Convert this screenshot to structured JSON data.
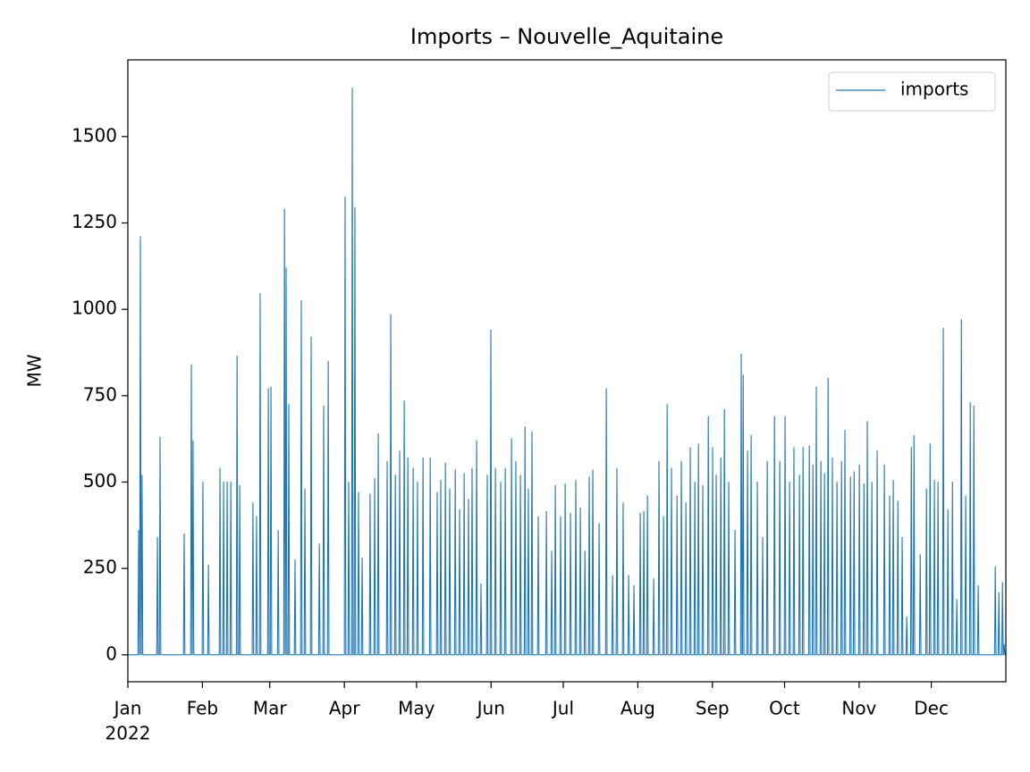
{
  "chart_data": {
    "type": "line",
    "title": "Imports – Nouvelle_Aquitaine",
    "y_label": "MW",
    "x_offset_label": "2022",
    "xlim": [
      0,
      365
    ],
    "ylim": [
      -78,
      1722
    ],
    "xticks": [
      {
        "value": 0,
        "label": "Jan"
      },
      {
        "value": 31,
        "label": "Feb"
      },
      {
        "value": 59,
        "label": "Mar"
      },
      {
        "value": 90,
        "label": "Apr"
      },
      {
        "value": 120,
        "label": "May"
      },
      {
        "value": 151,
        "label": "Jun"
      },
      {
        "value": 181,
        "label": "Jul"
      },
      {
        "value": 212,
        "label": "Aug"
      },
      {
        "value": 243,
        "label": "Sep"
      },
      {
        "value": 273,
        "label": "Oct"
      },
      {
        "value": 304,
        "label": "Nov"
      },
      {
        "value": 334,
        "label": "Dec"
      }
    ],
    "yticks": [
      0,
      250,
      500,
      750,
      1000,
      1250,
      1500
    ],
    "legend": "upper right",
    "x": [
      0,
      4.2,
      4.5,
      4.8,
      4.9,
      5.2,
      5.5,
      5.6,
      5.9,
      6.2,
      12.0,
      12.3,
      12.6,
      13.1,
      13.4,
      13.7,
      23.1,
      23.4,
      23.7,
      26.1,
      26.4,
      26.7,
      26.8,
      27.1,
      27.4,
      30.9,
      31.2,
      31.5,
      33.2,
      33.5,
      33.8,
      38.0,
      38.3,
      38.6,
      39.5,
      39.8,
      40.1,
      41.0,
      41.3,
      41.6,
      42.5,
      42.8,
      43.1,
      45.1,
      45.4,
      45.7,
      46.2,
      46.5,
      46.8,
      51.7,
      52.0,
      52.3,
      53.2,
      53.5,
      53.8,
      54.7,
      55.0,
      55.3,
      58.1,
      58.4,
      58.7,
      59.2,
      59.5,
      59.8,
      62.2,
      62.5,
      62.8,
      64.8,
      65.1,
      65.4,
      65.5,
      65.8,
      66.1,
      66.6,
      66.9,
      67.2,
      69.2,
      69.5,
      69.8,
      71.8,
      72.1,
      72.4,
      73.3,
      73.6,
      73.9,
      75.9,
      76.2,
      76.5,
      79.3,
      79.6,
      79.9,
      81.1,
      81.4,
      81.7,
      83.0,
      83.3,
      83.6,
      90.0,
      90.3,
      90.6,
      91.5,
      91.8,
      92.1,
      93.0,
      93.3,
      93.6,
      94.1,
      94.4,
      94.7,
      95.6,
      95.9,
      96.2,
      97.1,
      97.4,
      97.7,
      100.4,
      100.7,
      101.0,
      102.3,
      102.6,
      102.9,
      103.8,
      104.1,
      104.4,
      107.5,
      107.8,
      108.1,
      109.0,
      109.3,
      109.6,
      110.9,
      111.2,
      111.5,
      112.7,
      113.0,
      113.3,
      114.6,
      114.9,
      115.2,
      116.1,
      116.4,
      116.7,
      118.3,
      118.6,
      118.9,
      120.1,
      120.4,
      120.7,
      122.4,
      122.7,
      123.0,
      125.4,
      125.7,
      126.0,
      128.3,
      128.6,
      128.9,
      129.8,
      130.1,
      130.4,
      131.7,
      132.0,
      132.3,
      133.5,
      133.8,
      134.1,
      135.8,
      136.1,
      136.4,
      137.6,
      137.9,
      138.2,
      139.5,
      139.8,
      140.1,
      141.3,
      141.6,
      141.9,
      142.8,
      143.1,
      143.4,
      144.7,
      145.0,
      145.3,
      146.5,
      146.8,
      147.1,
      149.1,
      149.4,
      149.7,
      150.6,
      150.9,
      151.2,
      152.5,
      152.8,
      153.1,
      154.7,
      155.0,
      155.3,
      156.6,
      156.9,
      157.2,
      159.2,
      159.5,
      159.8,
      161.0,
      161.3,
      161.6,
      162.9,
      163.2,
      163.5,
      164.8,
      165.1,
      165.4,
      166.2,
      166.5,
      166.8,
      167.7,
      168.0,
      168.3,
      170.3,
      170.6,
      170.9,
      173.7,
      174.0,
      174.3,
      175.9,
      176.2,
      176.5,
      177.4,
      177.7,
      178.0,
      179.6,
      179.9,
      180.2,
      181.5,
      181.8,
      182.1,
      183.7,
      184.0,
      184.3,
      185.9,
      186.2,
      186.5,
      187.8,
      188.1,
      188.4,
      189.7,
      190.0,
      190.3,
      191.5,
      191.8,
      192.1,
      193.0,
      193.3,
      193.6,
      195.6,
      195.9,
      196.2,
      198.6,
      198.9,
      199.2,
      201.2,
      201.5,
      201.8,
      203.0,
      203.3,
      203.6,
      205.6,
      205.9,
      206.2,
      207.9,
      208.2,
      208.5,
      210.1,
      210.4,
      210.7,
      212.7,
      213.0,
      213.3,
      214.2,
      214.5,
      214.8,
      215.7,
      216.0,
      216.3,
      218.3,
      218.6,
      218.9,
      220.5,
      220.8,
      221.1,
      222.4,
      222.7,
      223.0,
      223.9,
      224.2,
      224.5,
      225.7,
      226.0,
      226.3,
      228.0,
      228.3,
      228.6,
      229.8,
      230.1,
      230.4,
      231.7,
      232.0,
      232.3,
      233.5,
      233.8,
      234.1,
      235.4,
      235.7,
      236.0,
      236.9,
      237.2,
      237.5,
      238.7,
      239.0,
      239.3,
      241.0,
      241.3,
      241.6,
      242.8,
      243.1,
      243.4,
      244.3,
      244.6,
      244.9,
      246.2,
      246.5,
      246.8,
      247.7,
      248.0,
      248.3,
      249.5,
      249.8,
      250.1,
      252.1,
      252.4,
      252.7,
      254.7,
      255.0,
      255.3,
      255.5,
      255.8,
      256.1,
      257.3,
      257.6,
      257.9,
      258.8,
      259.1,
      259.4,
      261.4,
      261.7,
      262.0,
      263.6,
      263.9,
      264.2,
      265.5,
      265.8,
      266.1,
      268.5,
      268.8,
      269.1,
      270.7,
      271.0,
      271.3,
      272.9,
      273.2,
      273.5,
      274.8,
      275.1,
      275.4,
      276.6,
      276.9,
      277.2,
      278.9,
      279.2,
      279.5,
      280.4,
      280.7,
      281.0,
      283.0,
      283.3,
      283.6,
      284.5,
      284.8,
      285.1,
      285.9,
      286.2,
      286.5,
      287.8,
      288.1,
      288.4,
      289.3,
      289.6,
      289.9,
      290.8,
      291.1,
      291.4,
      292.6,
      292.9,
      293.2,
      294.5,
      294.8,
      295.1,
      296.4,
      296.7,
      297.0,
      297.8,
      298.1,
      298.4,
      300.1,
      300.4,
      300.7,
      301.6,
      301.9,
      302.2,
      303.8,
      304.1,
      304.4,
      305.7,
      306.0,
      306.3,
      307.1,
      307.4,
      307.7,
      309.0,
      309.3,
      309.6,
      311.2,
      311.5,
      311.8,
      314.2,
      314.5,
      314.8,
      316.4,
      316.7,
      317.0,
      317.9,
      318.2,
      318.5,
      319.8,
      320.1,
      320.4,
      321.6,
      321.9,
      322.2,
      323.5,
      323.8,
      324.1,
      325.4,
      325.7,
      326.0,
      326.5,
      326.8,
      327.1,
      329.1,
      329.4,
      329.7,
      331.7,
      332.0,
      332.3,
      333.2,
      333.5,
      333.8,
      335.0,
      335.3,
      335.6,
      336.5,
      336.8,
      337.1,
      338.7,
      339.0,
      339.3,
      340.6,
      340.9,
      341.2,
      342.5,
      342.8,
      343.1,
      344.3,
      344.6,
      344.9,
      346.2,
      346.5,
      346.8,
      348.0,
      348.3,
      348.6,
      349.9,
      350.2,
      350.5,
      351.4,
      351.7,
      352.0,
      353.2,
      353.5,
      353.8,
      360.3,
      360.6,
      360.9,
      361.8,
      362.1,
      362.4,
      363.3,
      363.6,
      363.9,
      364.0,
      364.3,
      364.6,
      365
    ],
    "series": [
      {
        "name": "imports",
        "color": "#1f77b4",
        "values": [
          0,
          0,
          360,
          0,
          0,
          1210,
          0,
          0,
          520,
          0,
          0,
          340,
          0,
          0,
          630,
          0,
          0,
          350,
          0,
          0,
          840,
          0,
          0,
          620,
          0,
          0,
          500,
          0,
          0,
          260,
          0,
          0,
          540,
          0,
          0,
          500,
          0,
          0,
          500,
          0,
          0,
          500,
          0,
          0,
          865,
          0,
          0,
          490,
          0,
          0,
          440,
          0,
          0,
          400,
          0,
          0,
          1045,
          0,
          0,
          770,
          0,
          0,
          775,
          0,
          0,
          360,
          0,
          0,
          1290,
          0,
          0,
          1120,
          0,
          0,
          725,
          0,
          0,
          275,
          0,
          0,
          1025,
          0,
          0,
          480,
          0,
          0,
          920,
          0,
          0,
          320,
          0,
          0,
          720,
          0,
          0,
          850,
          0,
          0,
          1325,
          0,
          0,
          500,
          0,
          0,
          1640,
          0,
          0,
          1295,
          0,
          0,
          470,
          0,
          0,
          280,
          0,
          0,
          465,
          0,
          0,
          510,
          0,
          0,
          640,
          0,
          0,
          560,
          0,
          0,
          985,
          0,
          0,
          520,
          0,
          0,
          590,
          0,
          0,
          735,
          0,
          0,
          570,
          0,
          0,
          540,
          0,
          0,
          500,
          0,
          0,
          570,
          0,
          0,
          570,
          0,
          0,
          470,
          0,
          0,
          505,
          0,
          0,
          555,
          0,
          0,
          480,
          0,
          0,
          535,
          0,
          0,
          420,
          0,
          0,
          525,
          0,
          0,
          450,
          0,
          0,
          540,
          0,
          0,
          620,
          0,
          0,
          205,
          0,
          0,
          520,
          0,
          0,
          940,
          0,
          0,
          540,
          0,
          0,
          500,
          0,
          0,
          540,
          0,
          0,
          625,
          0,
          0,
          560,
          0,
          0,
          520,
          0,
          0,
          660,
          0,
          0,
          480,
          0,
          0,
          645,
          0,
          0,
          400,
          0,
          0,
          415,
          0,
          0,
          300,
          0,
          0,
          490,
          0,
          0,
          400,
          0,
          0,
          495,
          0,
          0,
          410,
          0,
          0,
          505,
          0,
          0,
          425,
          0,
          0,
          300,
          0,
          0,
          515,
          0,
          0,
          535,
          0,
          0,
          380,
          0,
          0,
          770,
          0,
          0,
          230,
          0,
          0,
          540,
          0,
          0,
          440,
          0,
          0,
          230,
          0,
          0,
          200,
          0,
          0,
          410,
          0,
          0,
          415,
          0,
          0,
          460,
          0,
          0,
          220,
          0,
          0,
          560,
          0,
          0,
          400,
          0,
          0,
          725,
          0,
          0,
          540,
          0,
          0,
          460,
          0,
          0,
          560,
          0,
          0,
          440,
          0,
          0,
          600,
          0,
          0,
          500,
          0,
          0,
          610,
          0,
          0,
          490,
          0,
          0,
          690,
          0,
          0,
          600,
          0,
          0,
          520,
          0,
          0,
          570,
          0,
          0,
          710,
          0,
          0,
          500,
          0,
          0,
          360,
          0,
          0,
          870,
          0,
          0,
          810,
          0,
          0,
          590,
          0,
          0,
          635,
          0,
          0,
          500,
          0,
          0,
          340,
          0,
          0,
          560,
          0,
          0,
          690,
          0,
          0,
          560,
          0,
          0,
          690,
          0,
          0,
          500,
          0,
          0,
          600,
          0,
          0,
          520,
          0,
          0,
          600,
          0,
          0,
          605,
          0,
          0,
          550,
          0,
          0,
          775,
          0,
          0,
          560,
          0,
          0,
          525,
          0,
          0,
          800,
          0,
          0,
          570,
          0,
          0,
          500,
          0,
          0,
          560,
          0,
          0,
          650,
          0,
          0,
          515,
          0,
          0,
          530,
          0,
          0,
          550,
          0,
          0,
          495,
          0,
          0,
          675,
          0,
          0,
          500,
          0,
          0,
          590,
          0,
          0,
          550,
          0,
          0,
          460,
          0,
          0,
          505,
          0,
          0,
          445,
          0,
          0,
          340,
          0,
          0,
          110,
          0,
          0,
          600,
          0,
          0,
          635,
          0,
          0,
          290,
          0,
          0,
          480,
          0,
          0,
          610,
          0,
          0,
          505,
          0,
          0,
          500,
          0,
          0,
          945,
          0,
          0,
          420,
          0,
          0,
          500,
          0,
          0,
          160,
          0,
          0,
          970,
          0,
          0,
          460,
          0,
          0,
          730,
          0,
          0,
          720,
          0,
          0,
          200,
          0,
          0,
          255,
          0,
          0,
          180,
          0,
          0,
          210,
          0,
          0,
          30,
          0,
          0
        ]
      }
    ]
  }
}
